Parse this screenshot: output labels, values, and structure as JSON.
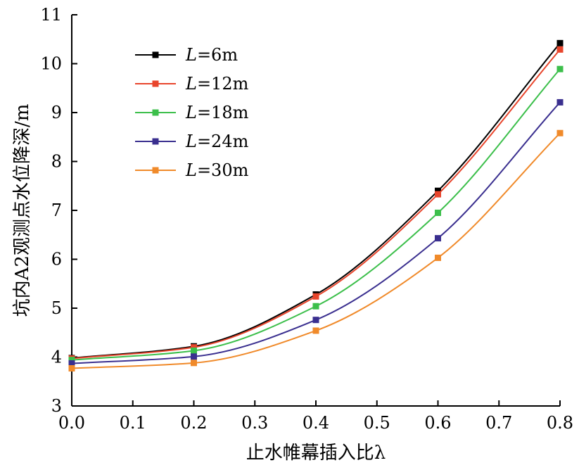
{
  "chart_data": {
    "type": "line",
    "xlabel": "止水帷幕插入比λ",
    "ylabel": "坑内A2观测点水位降深/m",
    "xlim": [
      0.0,
      0.8
    ],
    "ylim": [
      3,
      11
    ],
    "x_ticks": [
      "0.0",
      "0.1",
      "0.2",
      "0.3",
      "0.4",
      "0.5",
      "0.6",
      "0.7",
      "0.8"
    ],
    "y_ticks": [
      "3",
      "4",
      "5",
      "6",
      "7",
      "8",
      "9",
      "10",
      "11"
    ],
    "legend_position": "top-left",
    "grid": false,
    "x": [
      0.0,
      0.2,
      0.4,
      0.6,
      0.8
    ],
    "series": [
      {
        "name_italic": "L",
        "name_rest": "=6m",
        "color": "#000000",
        "values": [
          3.98,
          4.22,
          5.28,
          7.4,
          10.42
        ]
      },
      {
        "name_italic": "L",
        "name_rest": "=12m",
        "color": "#e8452c",
        "values": [
          3.97,
          4.2,
          5.24,
          7.33,
          10.29
        ]
      },
      {
        "name_italic": "L",
        "name_rest": "=18m",
        "color": "#3cbf4b",
        "values": [
          3.94,
          4.13,
          5.04,
          6.95,
          9.89
        ]
      },
      {
        "name_italic": "L",
        "name_rest": "=24m",
        "color": "#3a2f8f",
        "values": [
          3.87,
          4.01,
          4.76,
          6.43,
          9.21
        ]
      },
      {
        "name_italic": "L",
        "name_rest": "=30m",
        "color": "#f08a2a",
        "values": [
          3.77,
          3.88,
          4.54,
          6.03,
          8.58
        ]
      }
    ]
  }
}
